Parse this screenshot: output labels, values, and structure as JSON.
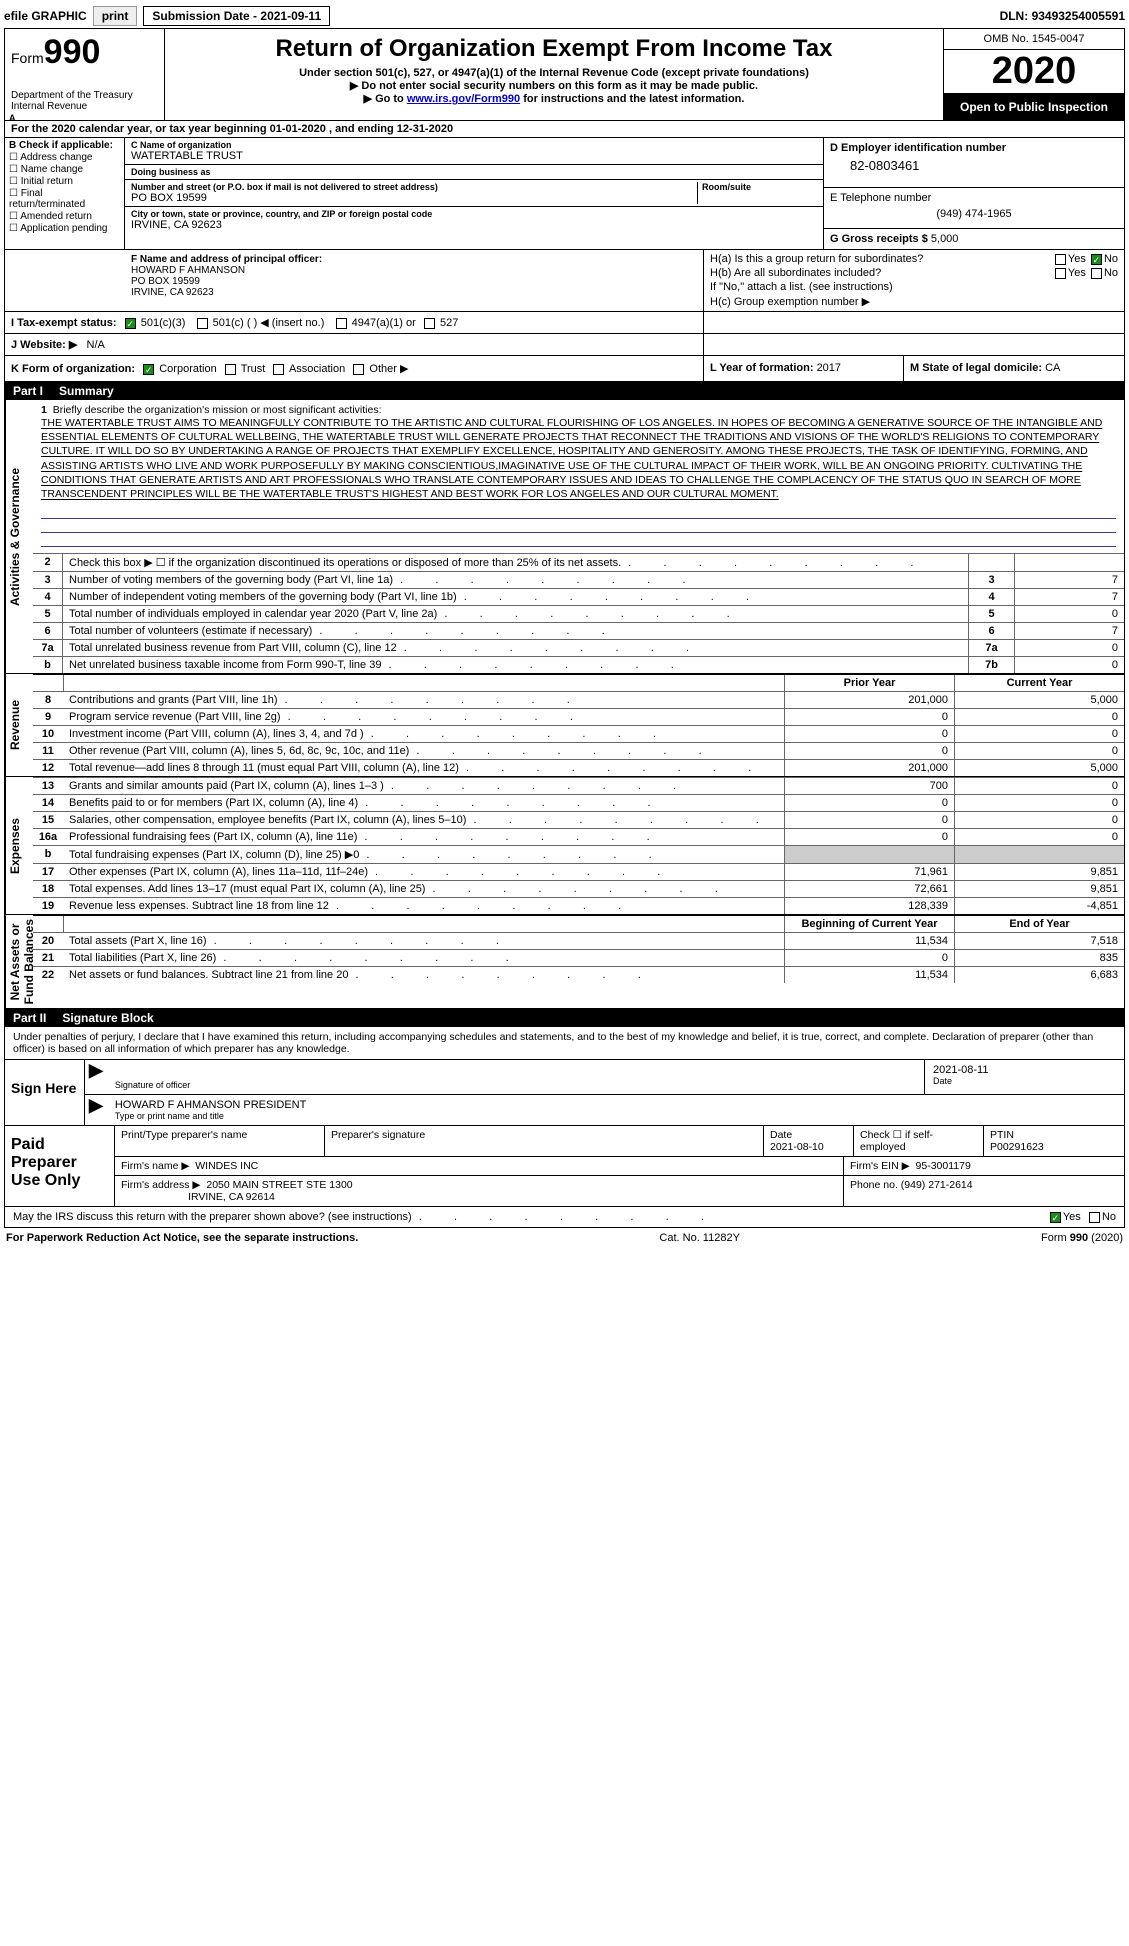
{
  "topbar": {
    "efile": "efile GRAPHIC",
    "print": "print",
    "subdate_label": "Submission Date - ",
    "subdate": "2021-09-11",
    "dln_label": "DLN: ",
    "dln": "93493254005591"
  },
  "header": {
    "form_prefix": "Form",
    "form_num": "990",
    "dept": "Department of the Treasury\nInternal Revenue",
    "title": "Return of Organization Exempt From Income Tax",
    "sub1": "Under section 501(c), 527, or 4947(a)(1) of the Internal Revenue Code (except private foundations)",
    "sub2": "Do not enter social security numbers on this form as it may be made public.",
    "sub3_pre": "Go to ",
    "sub3_link": "www.irs.gov/Form990",
    "sub3_post": " for instructions and the latest information.",
    "omb": "OMB No. 1545-0047",
    "year": "2020",
    "open": "Open to Public Inspection"
  },
  "period": {
    "text_pre": "For the 2020 calendar year, or tax year beginning ",
    "begin": "01-01-2020",
    "mid": " , and ending ",
    "end": "12-31-2020",
    "asup": "A"
  },
  "boxB": {
    "label": "B Check if applicable:",
    "items": [
      "Address change",
      "Name change",
      "Initial return",
      "Final return/terminated",
      "Amended return",
      "Application pending"
    ]
  },
  "boxC": {
    "name_lbl": "C Name of organization",
    "name": "WATERTABLE TRUST",
    "dba_lbl": "Doing business as",
    "dba": "",
    "addr_lbl": "Number and street (or P.O. box if mail is not delivered to street address)",
    "room_lbl": "Room/suite",
    "addr": "PO BOX 19599",
    "city_lbl": "City or town, state or province, country, and ZIP or foreign postal code",
    "city": "IRVINE, CA  92623"
  },
  "boxD": {
    "ein_lbl": "D Employer identification number",
    "ein": "82-0803461",
    "phone_lbl": "E Telephone number",
    "phone": "(949) 474-1965",
    "gross_lbl": "G Gross receipts $ ",
    "gross": "5,000"
  },
  "boxF": {
    "lbl": "F  Name and address of principal officer:",
    "name": "HOWARD F AHMANSON",
    "addr1": "PO BOX 19599",
    "addr2": "IRVINE, CA  92623"
  },
  "boxH": {
    "ha": "H(a)  Is this a group return for subordinates?",
    "hb": "H(b)  Are all subordinates included?",
    "hb_note": "If \"No,\" attach a list. (see instructions)",
    "hc": "H(c)  Group exemption number ▶",
    "yes": "Yes",
    "no": "No"
  },
  "boxI": {
    "lbl": "I   Tax-exempt status:",
    "o1": "501(c)(3)",
    "o2": "501(c) (  ) ◀ (insert no.)",
    "o3": "4947(a)(1) or",
    "o4": "527"
  },
  "boxJ": {
    "lbl": "J   Website: ▶",
    "val": "N/A"
  },
  "boxK": {
    "lbl": "K Form of organization:",
    "opts": [
      "Corporation",
      "Trust",
      "Association",
      "Other ▶"
    ],
    "L_lbl": "L Year of formation: ",
    "L_val": "2017",
    "M_lbl": "M State of legal domicile: ",
    "M_val": "CA"
  },
  "part1": {
    "num": "Part I",
    "title": "Summary"
  },
  "mission": {
    "num": "1",
    "lbl": "Briefly describe the organization's mission or most significant activities:",
    "text": "THE WATERTABLE TRUST AIMS TO MEANINGFULLY CONTRIBUTE TO THE ARTISTIC AND CULTURAL FLOURISHING OF LOS ANGELES. IN HOPES OF BECOMING A GENERATIVE SOURCE OF THE INTANGIBLE AND ESSENTIAL ELEMENTS OF CULTURAL WELLBEING, THE WATERTABLE TRUST WILL GENERATE PROJECTS THAT RECONNECT THE TRADITIONS AND VISIONS OF THE WORLD'S RELIGIONS TO CONTEMPORARY CULTURE. IT WILL DO SO BY UNDERTAKING A RANGE OF PROJECTS THAT EXEMPLIFY EXCELLENCE, HOSPITALITY AND GENEROSITY. AMONG THESE PROJECTS, THE TASK OF IDENTIFYING, FORMING, AND ASSISTING ARTISTS WHO LIVE AND WORK PURPOSEFULLY BY MAKING CONSCIENTIOUS,IMAGINATIVE USE OF THE CULTURAL IMPACT OF THEIR WORK, WILL BE AN ONGOING PRIORITY. CULTIVATING THE CONDITIONS THAT GENERATE ARTISTS AND ART PROFESSIONALS WHO TRANSLATE CONTEMPORARY ISSUES AND IDEAS TO CHALLENGE THE COMPLACENCY OF THE STATUS QUO IN SEARCH OF MORE TRANSCENDENT PRINCIPLES WILL BE THE WATERTABLE TRUST'S HIGHEST AND BEST WORK FOR LOS ANGELES AND OUR CULTURAL MOMENT."
  },
  "gov_lines": [
    {
      "n": "2",
      "d": "Check this box ▶ ☐ if the organization discontinued its operations or disposed of more than 25% of its net assets.",
      "box": "",
      "v": ""
    },
    {
      "n": "3",
      "d": "Number of voting members of the governing body (Part VI, line 1a)",
      "box": "3",
      "v": "7"
    },
    {
      "n": "4",
      "d": "Number of independent voting members of the governing body (Part VI, line 1b)",
      "box": "4",
      "v": "7"
    },
    {
      "n": "5",
      "d": "Total number of individuals employed in calendar year 2020 (Part V, line 2a)",
      "box": "5",
      "v": "0"
    },
    {
      "n": "6",
      "d": "Total number of volunteers (estimate if necessary)",
      "box": "6",
      "v": "7"
    },
    {
      "n": "7a",
      "d": "Total unrelated business revenue from Part VIII, column (C), line 12",
      "box": "7a",
      "v": "0"
    },
    {
      "n": "b",
      "d": "Net unrelated business taxable income from Form 990-T, line 39",
      "box": "7b",
      "v": "0"
    }
  ],
  "col_headers": {
    "prior": "Prior Year",
    "current": "Current Year",
    "boy": "Beginning of Current Year",
    "eoy": "End of Year"
  },
  "revenue": [
    {
      "n": "8",
      "d": "Contributions and grants (Part VIII, line 1h)",
      "p": "201,000",
      "c": "5,000"
    },
    {
      "n": "9",
      "d": "Program service revenue (Part VIII, line 2g)",
      "p": "0",
      "c": "0"
    },
    {
      "n": "10",
      "d": "Investment income (Part VIII, column (A), lines 3, 4, and 7d )",
      "p": "0",
      "c": "0"
    },
    {
      "n": "11",
      "d": "Other revenue (Part VIII, column (A), lines 5, 6d, 8c, 9c, 10c, and 11e)",
      "p": "0",
      "c": "0"
    },
    {
      "n": "12",
      "d": "Total revenue—add lines 8 through 11 (must equal Part VIII, column (A), line 12)",
      "p": "201,000",
      "c": "5,000"
    }
  ],
  "expenses": [
    {
      "n": "13",
      "d": "Grants and similar amounts paid (Part IX, column (A), lines 1–3 )",
      "p": "700",
      "c": "0"
    },
    {
      "n": "14",
      "d": "Benefits paid to or for members (Part IX, column (A), line 4)",
      "p": "0",
      "c": "0"
    },
    {
      "n": "15",
      "d": "Salaries, other compensation, employee benefits (Part IX, column (A), lines 5–10)",
      "p": "0",
      "c": "0"
    },
    {
      "n": "16a",
      "d": "Professional fundraising fees (Part IX, column (A), line 11e)",
      "p": "0",
      "c": "0"
    },
    {
      "n": "b",
      "d": "Total fundraising expenses (Part IX, column (D), line 25) ▶0",
      "p": "",
      "c": "",
      "shade": true
    },
    {
      "n": "17",
      "d": "Other expenses (Part IX, column (A), lines 11a–11d, 11f–24e)",
      "p": "71,961",
      "c": "9,851"
    },
    {
      "n": "18",
      "d": "Total expenses. Add lines 13–17 (must equal Part IX, column (A), line 25)",
      "p": "72,661",
      "c": "9,851"
    },
    {
      "n": "19",
      "d": "Revenue less expenses. Subtract line 18 from line 12",
      "p": "128,339",
      "c": "-4,851"
    }
  ],
  "netassets": [
    {
      "n": "20",
      "d": "Total assets (Part X, line 16)",
      "p": "11,534",
      "c": "7,518"
    },
    {
      "n": "21",
      "d": "Total liabilities (Part X, line 26)",
      "p": "0",
      "c": "835"
    },
    {
      "n": "22",
      "d": "Net assets or fund balances. Subtract line 21 from line 20",
      "p": "11,534",
      "c": "6,683"
    }
  ],
  "vtabs": {
    "gov": "Activities & Governance",
    "rev": "Revenue",
    "exp": "Expenses",
    "net": "Net Assets or\nFund Balances"
  },
  "part2": {
    "num": "Part II",
    "title": "Signature Block"
  },
  "perjury": "Under penalties of perjury, I declare that I have examined this return, including accompanying schedules and statements, and to the best of my knowledge and belief, it is true, correct, and complete. Declaration of preparer (other than officer) is based on all information of which preparer has any knowledge.",
  "sign": {
    "here": "Sign Here",
    "sig_lbl": "Signature of officer",
    "date_lbl": "Date",
    "date": "2021-08-11",
    "name": "HOWARD F AHMANSON  PRESIDENT",
    "name_lbl": "Type or print name and title"
  },
  "paid": {
    "lbl": "Paid Preparer Use Only",
    "r1": {
      "c1": "Print/Type preparer's name",
      "c2": "Preparer's signature",
      "c3_lbl": "Date",
      "c3": "2021-08-10",
      "c4_lbl": "Check ☐ if self-employed",
      "c5_lbl": "PTIN",
      "c5": "P00291623"
    },
    "r2": {
      "c1_lbl": "Firm's name   ▶",
      "c1": "WINDES INC",
      "c2_lbl": "Firm's EIN ▶",
      "c2": "95-3001179"
    },
    "r3": {
      "c1_lbl": "Firm's address ▶",
      "c1a": "2050 MAIN STREET STE 1300",
      "c1b": "IRVINE, CA  92614",
      "c2_lbl": "Phone no. ",
      "c2": "(949) 271-2614"
    }
  },
  "discuss": {
    "q": "May the IRS discuss this return with the preparer shown above? (see instructions)",
    "yes": "Yes",
    "no": "No"
  },
  "footer": {
    "l": "For Paperwork Reduction Act Notice, see the separate instructions.",
    "m": "Cat. No. 11282Y",
    "r": "Form 990 (2020)"
  }
}
